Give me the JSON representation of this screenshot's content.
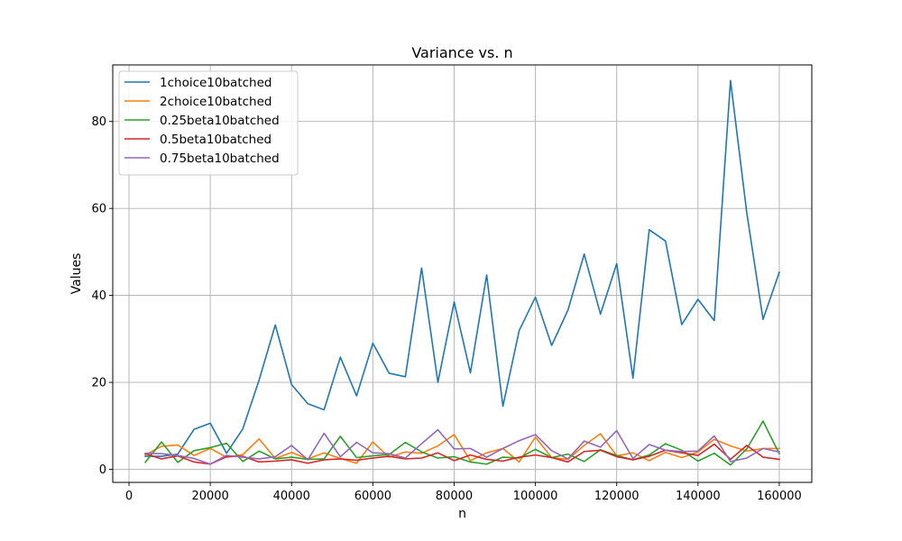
{
  "chart_data": {
    "type": "line",
    "title": "Variance vs. n",
    "xlabel": "n",
    "ylabel": "Values",
    "xlim": [
      -4000,
      168000
    ],
    "ylim": [
      -3,
      93
    ],
    "xticks": [
      0,
      20000,
      40000,
      60000,
      80000,
      100000,
      120000,
      140000,
      160000
    ],
    "yticks": [
      0,
      20,
      40,
      60,
      80
    ],
    "grid": true,
    "legend_position": "top-left",
    "x": [
      4000,
      8000,
      12000,
      16000,
      20000,
      24000,
      28000,
      32000,
      36000,
      40000,
      44000,
      48000,
      52000,
      56000,
      60000,
      64000,
      68000,
      72000,
      76000,
      80000,
      84000,
      88000,
      92000,
      96000,
      100000,
      104000,
      108000,
      112000,
      116000,
      120000,
      124000,
      128000,
      132000,
      136000,
      140000,
      144000,
      148000,
      152000,
      156000,
      160000
    ],
    "series": [
      {
        "name": "1choice10batched",
        "color": "#1f77b4",
        "values": [
          3.0,
          3.0,
          3.5,
          9.2,
          10.6,
          3.7,
          9.3,
          20.5,
          33.2,
          19.5,
          15.1,
          13.7,
          25.8,
          16.9,
          29.0,
          22.1,
          21.3,
          46.3,
          20.0,
          38.5,
          22.2,
          44.7,
          14.5,
          31.9,
          39.6,
          28.5,
          36.6,
          49.5,
          35.7,
          47.3,
          21.0,
          55.1,
          52.5,
          33.3,
          39.1,
          34.2,
          89.4,
          59.0,
          34.5,
          45.3
        ]
      },
      {
        "name": "2choice10batched",
        "color": "#ff7f0e",
        "values": [
          3.3,
          5.3,
          5.6,
          3.2,
          4.8,
          2.8,
          3.4,
          7.0,
          2.5,
          3.9,
          2.4,
          3.8,
          2.5,
          1.4,
          6.3,
          2.8,
          4.0,
          3.7,
          5.4,
          8.0,
          2.0,
          3.8,
          4.8,
          1.7,
          7.4,
          2.7,
          2.3,
          5.5,
          8.2,
          3.1,
          3.8,
          2.0,
          3.9,
          2.7,
          4.0,
          6.9,
          5.4,
          4.2,
          4.8,
          4.8
        ]
      },
      {
        "name": "0.25beta10batched",
        "color": "#2ca02c",
        "values": [
          1.6,
          6.3,
          1.6,
          4.3,
          5.0,
          6.0,
          1.8,
          4.2,
          2.4,
          2.8,
          2.3,
          2.4,
          7.6,
          2.7,
          3.1,
          3.4,
          6.2,
          4.0,
          2.6,
          2.9,
          1.7,
          1.2,
          2.8,
          2.6,
          4.6,
          2.7,
          3.5,
          1.8,
          4.5,
          3.2,
          2.2,
          3.3,
          5.9,
          4.4,
          1.9,
          3.7,
          1.0,
          4.7,
          11.1,
          3.6
        ]
      },
      {
        "name": "0.5beta10batched",
        "color": "#d62728",
        "values": [
          3.6,
          2.4,
          3.1,
          1.7,
          1.2,
          2.9,
          3.0,
          1.7,
          1.9,
          2.2,
          1.4,
          2.2,
          2.4,
          2.1,
          2.6,
          3.0,
          2.4,
          2.6,
          3.8,
          2.0,
          3.3,
          2.3,
          1.9,
          2.8,
          3.3,
          2.7,
          1.7,
          4.1,
          4.4,
          2.9,
          2.2,
          3.0,
          4.4,
          3.8,
          3.2,
          5.8,
          2.3,
          5.5,
          2.8,
          2.3
        ]
      },
      {
        "name": "0.75beta10batched",
        "color": "#9467bd",
        "values": [
          3.7,
          3.6,
          3.2,
          2.5,
          1.2,
          3.2,
          2.8,
          2.4,
          2.9,
          5.5,
          2.2,
          8.3,
          2.9,
          6.2,
          3.8,
          3.6,
          2.6,
          5.9,
          9.1,
          4.7,
          4.8,
          2.8,
          4.8,
          6.6,
          8.0,
          4.3,
          2.4,
          6.5,
          5.1,
          8.9,
          2.5,
          5.7,
          4.4,
          4.1,
          4.2,
          7.7,
          1.8,
          2.6,
          4.8,
          4.0
        ]
      }
    ]
  }
}
